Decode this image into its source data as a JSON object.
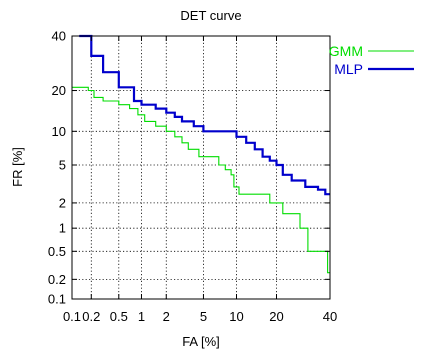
{
  "chart_data": {
    "type": "line",
    "title": "DET curve",
    "xlabel": "FA [%]",
    "ylabel": "FR [%]",
    "x_scale": "probit",
    "y_scale": "probit",
    "xlim": [
      0.1,
      40
    ],
    "ylim": [
      0.1,
      40
    ],
    "grid": true,
    "legend_position": "top-right",
    "xticks": [
      {
        "value": 0.1,
        "label": "0.1"
      },
      {
        "value": 0.2,
        "label": "0.2"
      },
      {
        "value": 0.5,
        "label": "0.5"
      },
      {
        "value": 1,
        "label": "1"
      },
      {
        "value": 2,
        "label": "2"
      },
      {
        "value": 5,
        "label": "5"
      },
      {
        "value": 10,
        "label": "10"
      },
      {
        "value": 20,
        "label": "20"
      },
      {
        "value": 40,
        "label": "40"
      }
    ],
    "yticks": [
      {
        "value": 0.1,
        "label": "0.1"
      },
      {
        "value": 0.2,
        "label": "0.2"
      },
      {
        "value": 0.5,
        "label": "0.5"
      },
      {
        "value": 1,
        "label": "1"
      },
      {
        "value": 2,
        "label": "2"
      },
      {
        "value": 5,
        "label": "5"
      },
      {
        "value": 10,
        "label": "10"
      },
      {
        "value": 20,
        "label": "20"
      },
      {
        "value": 40,
        "label": "40"
      }
    ],
    "series": [
      {
        "name": "GMM",
        "color": "#00dd00",
        "points": [
          [
            0.1,
            21
          ],
          [
            0.13,
            21
          ],
          [
            0.18,
            20
          ],
          [
            0.22,
            18
          ],
          [
            0.3,
            17
          ],
          [
            0.5,
            16
          ],
          [
            0.7,
            15
          ],
          [
            0.9,
            13.5
          ],
          [
            1.1,
            12
          ],
          [
            1.5,
            11
          ],
          [
            2.0,
            10
          ],
          [
            2.5,
            9
          ],
          [
            3.0,
            8
          ],
          [
            3.5,
            7
          ],
          [
            4.5,
            6
          ],
          [
            6.0,
            6
          ],
          [
            7.0,
            5
          ],
          [
            8.0,
            4.5
          ],
          [
            9.0,
            4
          ],
          [
            9.5,
            3
          ],
          [
            10.5,
            2.5
          ],
          [
            16,
            2.5
          ],
          [
            18,
            2
          ],
          [
            21,
            2
          ],
          [
            22,
            1.5
          ],
          [
            27,
            1.5
          ],
          [
            28,
            1
          ],
          [
            30,
            1
          ],
          [
            31,
            0.5
          ],
          [
            38,
            0.5
          ],
          [
            39,
            0.25
          ],
          [
            40,
            0.25
          ]
        ]
      },
      {
        "name": "MLP",
        "color": "#0000cc",
        "points": [
          [
            0.13,
            40
          ],
          [
            0.2,
            32
          ],
          [
            0.3,
            26
          ],
          [
            0.5,
            21
          ],
          [
            0.8,
            17
          ],
          [
            1.0,
            16
          ],
          [
            1.5,
            15
          ],
          [
            2.0,
            14
          ],
          [
            2.5,
            13
          ],
          [
            3.0,
            12
          ],
          [
            4.0,
            11
          ],
          [
            5.0,
            10
          ],
          [
            6.0,
            10
          ],
          [
            9.0,
            10
          ],
          [
            10.0,
            9
          ],
          [
            12,
            8
          ],
          [
            14,
            7
          ],
          [
            16,
            6
          ],
          [
            18,
            5.5
          ],
          [
            20,
            5
          ],
          [
            22,
            4
          ],
          [
            25,
            3.5
          ],
          [
            30,
            3
          ],
          [
            35,
            2.8
          ],
          [
            38,
            2.5
          ],
          [
            40,
            2.5
          ]
        ]
      }
    ]
  }
}
